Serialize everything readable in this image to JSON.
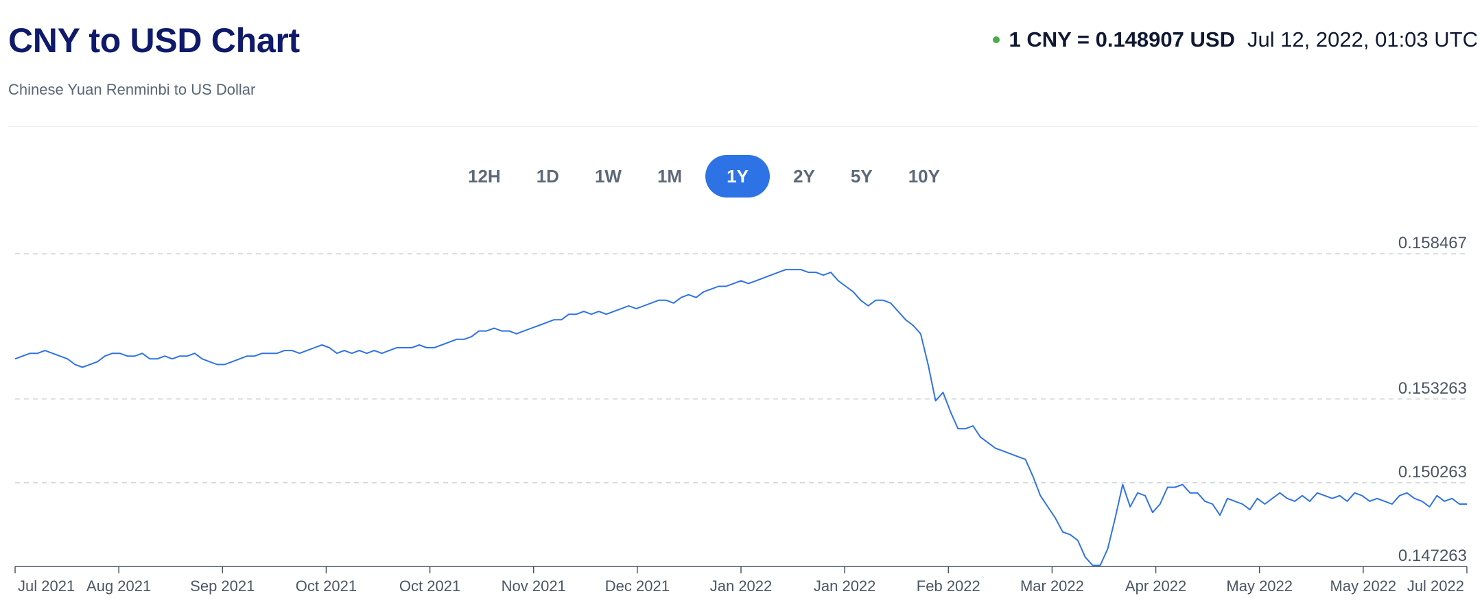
{
  "header": {
    "title": "CNY to USD Chart",
    "subtitle": "Chinese Yuan Renminbi to US Dollar",
    "rate": "1 CNY = 0.148907 USD",
    "timestamp": "Jul 12, 2022, 01:03 UTC",
    "status_color": "#4aab4a"
  },
  "tabs": [
    {
      "label": "12H",
      "active": false
    },
    {
      "label": "1D",
      "active": false
    },
    {
      "label": "1W",
      "active": false
    },
    {
      "label": "1M",
      "active": false
    },
    {
      "label": "1Y",
      "active": true
    },
    {
      "label": "2Y",
      "active": false
    },
    {
      "label": "5Y",
      "active": false
    },
    {
      "label": "10Y",
      "active": false
    }
  ],
  "chart_data": {
    "type": "line",
    "line_color": "#2e73e6",
    "grid": "dashed horizontal",
    "ylim": [
      0.147263,
      0.158467
    ],
    "y_ticks": [
      "0.158467",
      "0.153263",
      "0.150263",
      "0.147263"
    ],
    "x_tick_labels": [
      "Jul 2021",
      "Aug 2021",
      "Sep 2021",
      "Oct 2021",
      "Oct 2021",
      "Nov 2021",
      "Dec 2021",
      "Jan 2022",
      "Jan 2022",
      "Feb 2022",
      "Mar 2022",
      "Apr 2022",
      "May 2022",
      "May 2022",
      "Jul 2022"
    ],
    "series": [
      {
        "values": [
          0.1547,
          0.1548,
          0.1549,
          0.1549,
          0.155,
          0.1549,
          0.1548,
          0.1547,
          0.1545,
          0.1544,
          0.1545,
          0.1546,
          0.1548,
          0.1549,
          0.1549,
          0.1548,
          0.1548,
          0.1549,
          0.1547,
          0.1547,
          0.1548,
          0.1547,
          0.1548,
          0.1548,
          0.1549,
          0.1547,
          0.1546,
          0.1545,
          0.1545,
          0.1546,
          0.1547,
          0.1548,
          0.1548,
          0.1549,
          0.1549,
          0.1549,
          0.155,
          0.155,
          0.1549,
          0.155,
          0.1551,
          0.1552,
          0.1551,
          0.1549,
          0.155,
          0.1549,
          0.155,
          0.1549,
          0.155,
          0.1549,
          0.155,
          0.1551,
          0.1551,
          0.1551,
          0.1552,
          0.1551,
          0.1551,
          0.1552,
          0.1553,
          0.1554,
          0.1554,
          0.1555,
          0.1557,
          0.1557,
          0.1558,
          0.1557,
          0.1557,
          0.1556,
          0.1557,
          0.1558,
          0.1559,
          0.156,
          0.1561,
          0.1561,
          0.1563,
          0.1563,
          0.1564,
          0.1563,
          0.1564,
          0.1563,
          0.1564,
          0.1565,
          0.1566,
          0.1565,
          0.1566,
          0.1567,
          0.1568,
          0.1568,
          0.1567,
          0.1569,
          0.157,
          0.1569,
          0.1571,
          0.1572,
          0.1573,
          0.1573,
          0.1574,
          0.1575,
          0.1574,
          0.1575,
          0.1576,
          0.1577,
          0.1578,
          0.1579,
          0.1579,
          0.1579,
          0.1578,
          0.1578,
          0.1577,
          0.1578,
          0.1575,
          0.1573,
          0.1571,
          0.1568,
          0.1566,
          0.1568,
          0.1568,
          0.1567,
          0.1564,
          0.1561,
          0.1559,
          0.1556,
          0.1545,
          0.1532,
          0.1535,
          0.1528,
          0.1522,
          0.1522,
          0.1523,
          0.1519,
          0.1517,
          0.1515,
          0.1514,
          0.1513,
          0.1512,
          0.1511,
          0.1505,
          0.1498,
          0.1494,
          0.149,
          0.1485,
          0.1484,
          0.1482,
          0.1476,
          0.1473,
          0.1473,
          0.1479,
          0.149,
          0.1502,
          0.1494,
          0.1499,
          0.1498,
          0.1492,
          0.1495,
          0.1501,
          0.1501,
          0.1502,
          0.1499,
          0.1499,
          0.1496,
          0.1495,
          0.1491,
          0.1497,
          0.1496,
          0.1495,
          0.1493,
          0.1497,
          0.1495,
          0.1497,
          0.1499,
          0.1497,
          0.1496,
          0.1498,
          0.1496,
          0.1499,
          0.1498,
          0.1497,
          0.1498,
          0.1496,
          0.1499,
          0.1498,
          0.1496,
          0.1497,
          0.1496,
          0.1495,
          0.1498,
          0.1499,
          0.1497,
          0.1496,
          0.1494,
          0.1498,
          0.1496,
          0.1497,
          0.1495,
          0.1495
        ]
      }
    ]
  }
}
